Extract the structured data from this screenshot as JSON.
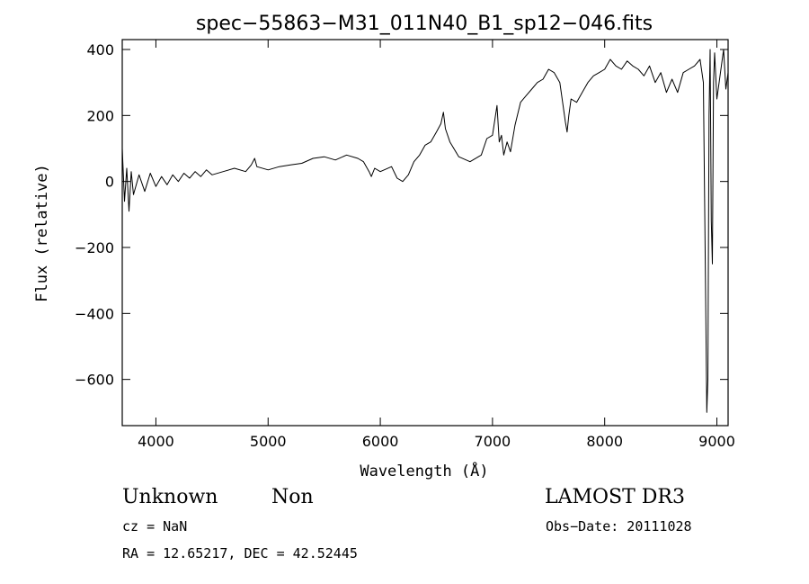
{
  "chart_data": {
    "type": "line",
    "title": "spec−55863−M31_011N40_B1_sp12−046.fits",
    "xlabel": "Wavelength (Å)",
    "ylabel": "Flux (relative)",
    "xlim": [
      3700,
      9100
    ],
    "ylim": [
      -740,
      430
    ],
    "x_ticks": [
      4000,
      5000,
      6000,
      7000,
      8000,
      9000
    ],
    "x_tick_labels": [
      "4000",
      "5000",
      "6000",
      "7000",
      "8000",
      "9000"
    ],
    "y_ticks": [
      400,
      200,
      0,
      -200,
      -400,
      -600
    ],
    "y_tick_labels": [
      "400",
      "200",
      "0",
      "−200",
      "−400",
      "−600"
    ],
    "grid": false,
    "series": [
      {
        "color": "#000000",
        "x": [
          3700,
          3720,
          3740,
          3760,
          3780,
          3800,
          3850,
          3900,
          3950,
          4000,
          4050,
          4100,
          4150,
          4200,
          4250,
          4300,
          4350,
          4400,
          4450,
          4500,
          4600,
          4700,
          4800,
          4850,
          4880,
          4900,
          5000,
          5100,
          5200,
          5300,
          5400,
          5500,
          5600,
          5700,
          5800,
          5850,
          5900,
          5920,
          5950,
          6000,
          6100,
          6150,
          6200,
          6250,
          6300,
          6350,
          6400,
          6450,
          6500,
          6540,
          6563,
          6580,
          6620,
          6700,
          6800,
          6900,
          6950,
          7000,
          7040,
          7060,
          7080,
          7100,
          7130,
          7160,
          7200,
          7250,
          7300,
          7350,
          7400,
          7450,
          7500,
          7550,
          7600,
          7650,
          7665,
          7680,
          7700,
          7750,
          7800,
          7850,
          7900,
          7950,
          8000,
          8050,
          8100,
          8150,
          8200,
          8250,
          8300,
          8350,
          8400,
          8450,
          8500,
          8550,
          8600,
          8650,
          8700,
          8750,
          8800,
          8850,
          8880,
          8900,
          8910,
          8920,
          8930,
          8940,
          8950,
          8960,
          8970,
          8980,
          9000,
          9020,
          9040,
          9060,
          9080,
          9100
        ],
        "y": [
          100,
          -60,
          40,
          -90,
          30,
          -40,
          20,
          -30,
          25,
          -15,
          15,
          -10,
          20,
          0,
          25,
          10,
          30,
          15,
          35,
          20,
          30,
          40,
          30,
          50,
          70,
          45,
          35,
          45,
          50,
          55,
          70,
          75,
          65,
          80,
          70,
          60,
          30,
          15,
          40,
          30,
          45,
          10,
          0,
          20,
          60,
          80,
          110,
          120,
          150,
          175,
          210,
          160,
          120,
          75,
          60,
          80,
          130,
          140,
          230,
          120,
          140,
          80,
          120,
          90,
          170,
          240,
          260,
          280,
          300,
          310,
          340,
          330,
          300,
          180,
          150,
          200,
          250,
          240,
          270,
          300,
          320,
          330,
          340,
          370,
          350,
          340,
          365,
          350,
          340,
          320,
          350,
          300,
          330,
          270,
          310,
          270,
          330,
          340,
          350,
          370,
          300,
          -350,
          -700,
          -600,
          200,
          400,
          -120,
          -250,
          300,
          390,
          250,
          300,
          350,
          400,
          280,
          330
        ]
      }
    ]
  },
  "annotations": {
    "object_class": "Unknown",
    "subclass": "Non",
    "survey": "LAMOST DR3",
    "redshift_text": "cz = NaN",
    "obs_date": "Obs−Date: 20111028",
    "coords": "RA =  12.65217, DEC =  42.52445"
  }
}
